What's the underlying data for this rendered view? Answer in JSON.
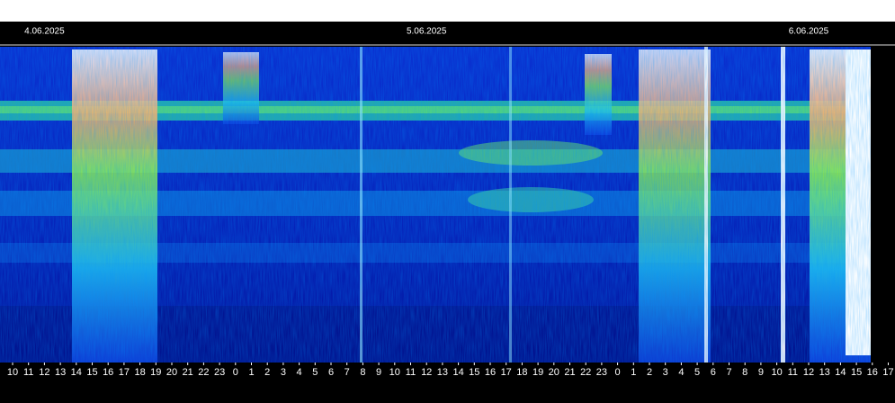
{
  "chart_data": {
    "type": "spectrogram",
    "dates": [
      "4.06.2025",
      "5.06.2025",
      "6.06.2025"
    ],
    "categories": [
      "10",
      "11",
      "12",
      "13",
      "14",
      "15",
      "16",
      "17",
      "18",
      "19",
      "20",
      "21",
      "22",
      "23",
      "0",
      "1",
      "2",
      "3",
      "4",
      "5",
      "6",
      "7",
      "8",
      "9",
      "10",
      "11",
      "12",
      "13",
      "14",
      "15",
      "16",
      "17",
      "18",
      "19",
      "20",
      "21",
      "22",
      "23",
      "0",
      "1",
      "2",
      "3",
      "4",
      "5",
      "6",
      "7",
      "8",
      "9",
      "10",
      "11",
      "12",
      "13",
      "14",
      "15",
      "16",
      "17"
    ]
  }
}
